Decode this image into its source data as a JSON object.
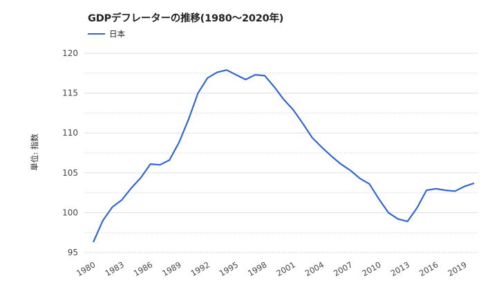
{
  "chart_data": {
    "type": "line",
    "title": "GDPデフレーターの推移(1980～2020年)",
    "xlabel": "",
    "ylabel": "単位: 指数",
    "ylim": [
      95,
      120
    ],
    "yticks": [
      95,
      100,
      105,
      110,
      115,
      120
    ],
    "grid": true,
    "legend_position": "top",
    "x": [
      1980,
      1981,
      1982,
      1983,
      1984,
      1985,
      1986,
      1987,
      1988,
      1989,
      1990,
      1991,
      1992,
      1993,
      1994,
      1995,
      1996,
      1997,
      1998,
      1999,
      2000,
      2001,
      2002,
      2003,
      2004,
      2005,
      2006,
      2007,
      2008,
      2009,
      2010,
      2011,
      2012,
      2013,
      2014,
      2015,
      2016,
      2017,
      2018,
      2019,
      2020
    ],
    "xtick_labels": [
      "1980",
      "1983",
      "1986",
      "1989",
      "1992",
      "1995",
      "1998",
      "2001",
      "2004",
      "2007",
      "2010",
      "2013",
      "2016",
      "2019"
    ],
    "series": [
      {
        "name": "日本",
        "color": "#3366cc",
        "values": [
          96.3,
          99.0,
          100.7,
          101.6,
          103.1,
          104.4,
          106.1,
          106.0,
          106.6,
          108.8,
          111.7,
          115.0,
          116.9,
          117.6,
          117.9,
          117.3,
          116.7,
          117.3,
          117.2,
          115.8,
          114.2,
          112.9,
          111.2,
          109.4,
          108.2,
          107.1,
          106.1,
          105.3,
          104.3,
          103.6,
          101.7,
          100.0,
          99.2,
          98.9,
          100.6,
          102.8,
          103.0,
          102.8,
          102.7,
          103.3,
          103.7
        ]
      }
    ]
  }
}
